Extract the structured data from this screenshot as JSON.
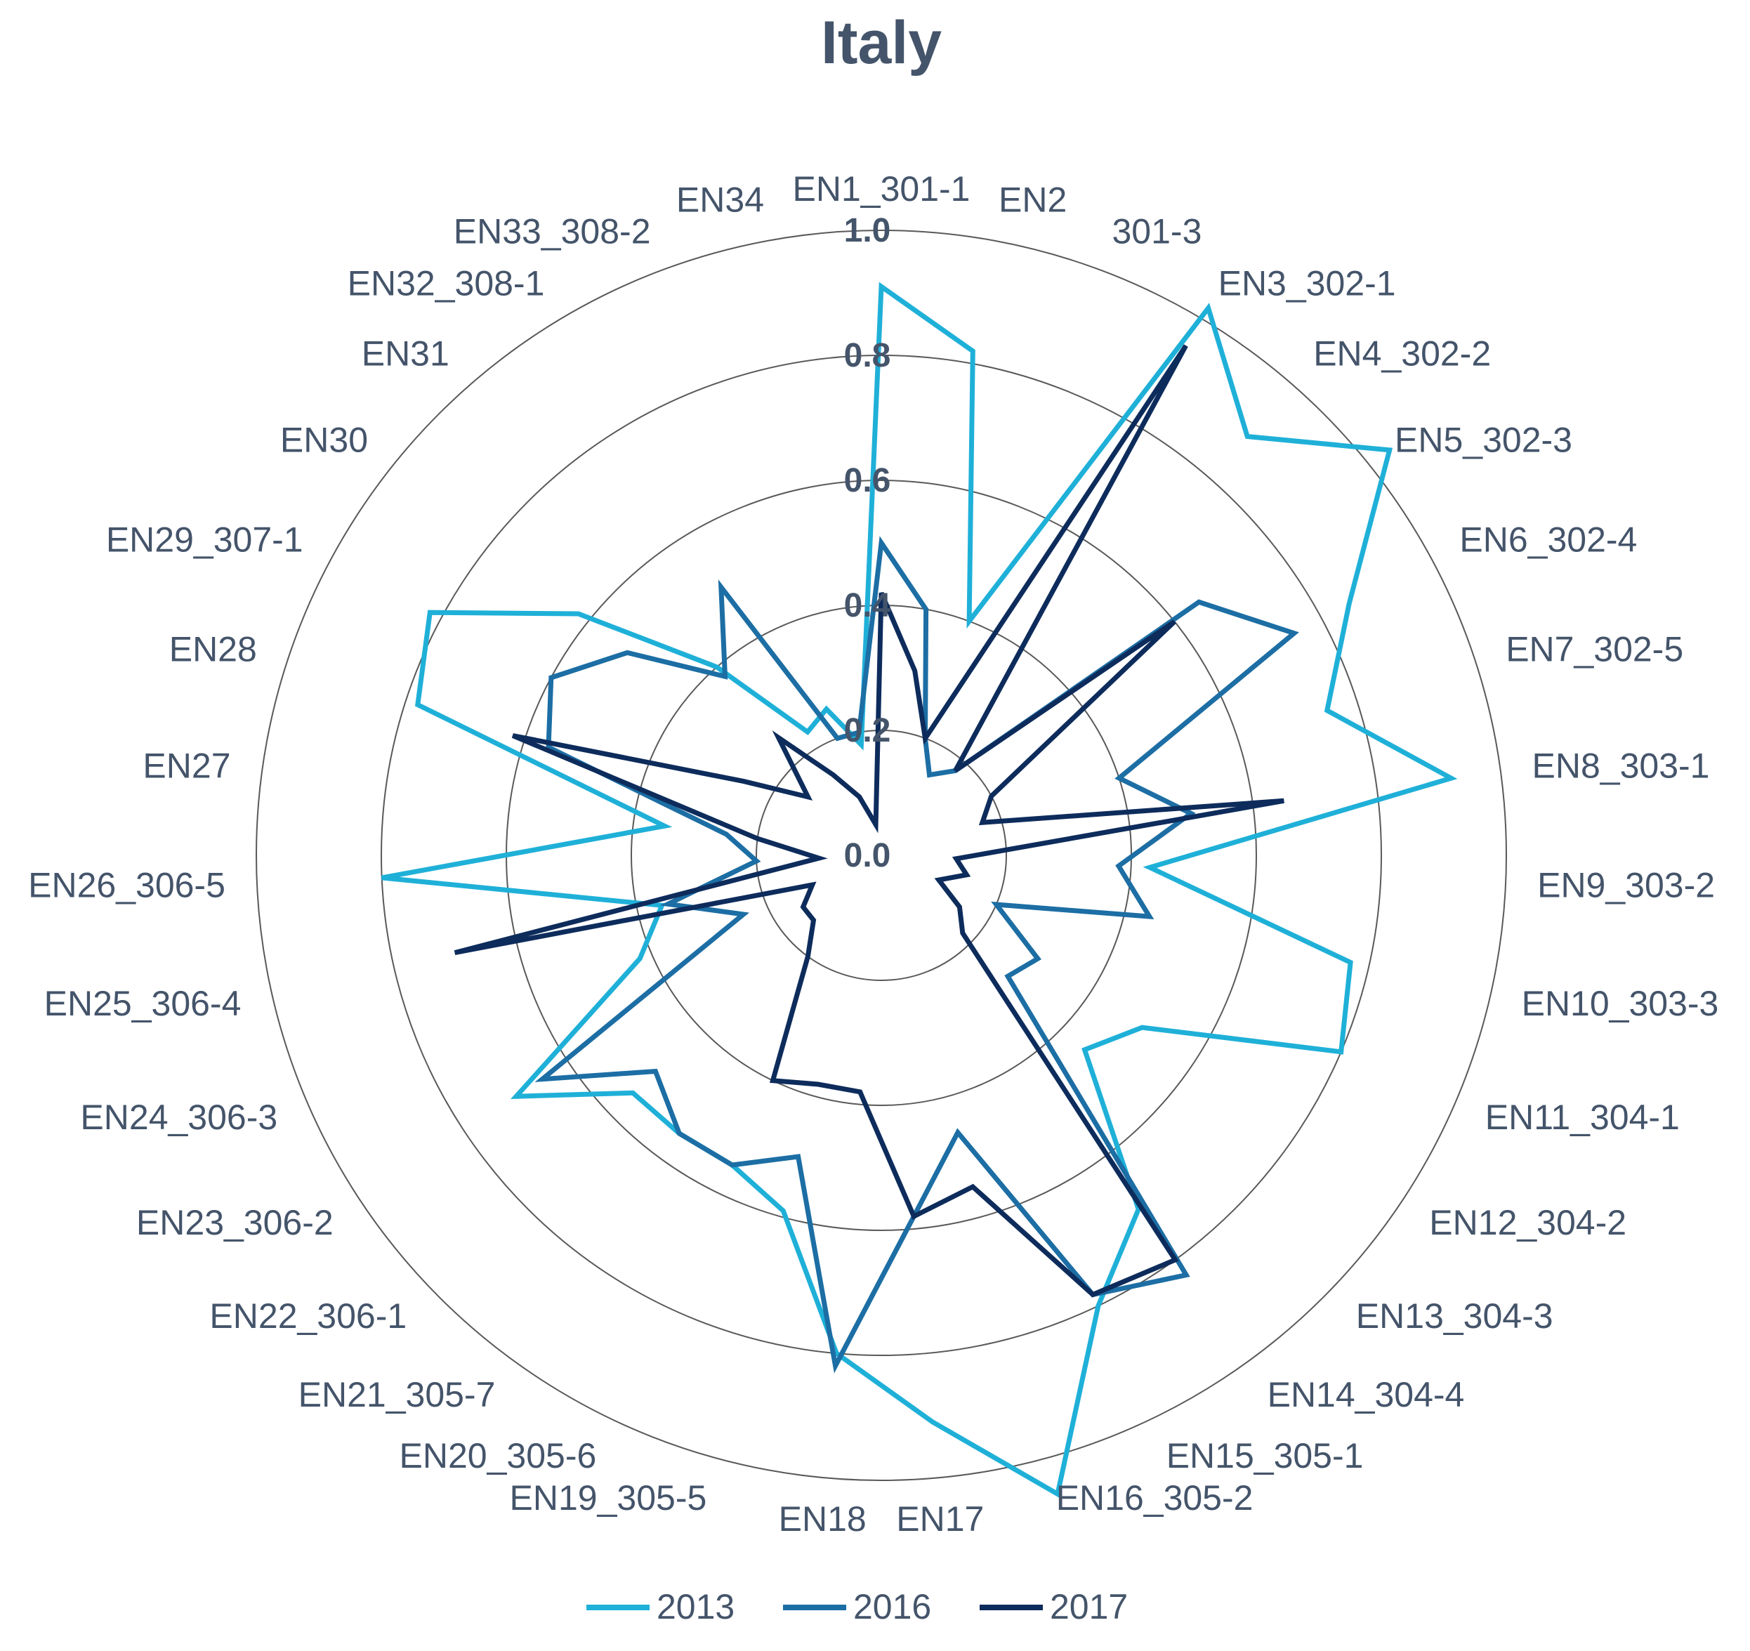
{
  "chart_data": {
    "type": "radar",
    "title": "Italy",
    "categories": [
      "EN1_301-1",
      "EN2",
      "301-3",
      "EN3_302-1",
      "EN4_302-2",
      "EN5_302-3",
      "EN6_302-4",
      "EN7_302-5",
      "EN8_303-1",
      "EN9_303-2",
      "EN10_303-3",
      "EN11_304-1",
      "EN12_304-2",
      "EN13_304-3",
      "EN14_304-4",
      "EN15_305-1",
      "EN16_305-2",
      "EN17",
      "EN18",
      "EN19_305-5",
      "EN20_305-6",
      "EN21_305-7",
      "EN22_306-1",
      "EN23_306-2",
      "EN24_306-3",
      "EN25_306-4",
      "EN26_306-5",
      "EN27",
      "EN28",
      "EN29_307-1",
      "EN30",
      "EN31",
      "EN32_308-1",
      "EN33_308-2",
      "EN34"
    ],
    "ticks": [
      "0.0",
      "0.2",
      "0.4",
      "0.6",
      "0.8",
      "1.0"
    ],
    "rlim": [
      0,
      1.0
    ],
    "grid": true,
    "legend_position": "bottom",
    "series": [
      {
        "name": "2013",
        "color": "#1fb0d8",
        "values": [
          0.91,
          0.82,
          0.4,
          1.02,
          0.89,
          1.04,
          0.85,
          0.75,
          0.92,
          0.43,
          0.77,
          0.8,
          0.5,
          0.45,
          0.7,
          0.8,
          1.06,
          0.91,
          0.8,
          0.59,
          0.55,
          0.55,
          0.55,
          0.7,
          0.42,
          0.36,
          0.8,
          0.35,
          0.78,
          0.82,
          0.62,
          0.4,
          0.23,
          0.25,
          0.18
        ]
      },
      {
        "name": "2016",
        "color": "#1c6ea4",
        "values": [
          0.5,
          0.4,
          0.2,
          0.15,
          0.18,
          0.65,
          0.75,
          0.4,
          0.5,
          0.38,
          0.44,
          0.2,
          0.3,
          0.28,
          0.83,
          0.78,
          0.46,
          0.58,
          0.82,
          0.5,
          0.55,
          0.55,
          0.5,
          0.65,
          0.24,
          0.35,
          0.2,
          0.25,
          0.56,
          0.6,
          0.52,
          0.38,
          0.5,
          0.2,
          0.2
        ]
      },
      {
        "name": "2017",
        "color": "#0d2c5c",
        "values": [
          0.42,
          0.3,
          0.2,
          0.95,
          0.18,
          0.6,
          0.2,
          0.17,
          0.65,
          0.12,
          0.14,
          0.1,
          0.15,
          0.18,
          0.8,
          0.78,
          0.55,
          0.58,
          0.38,
          0.38,
          0.4,
          0.2,
          0.15,
          0.15,
          0.12,
          0.7,
          0.1,
          0.2,
          0.62,
          0.25,
          0.15,
          0.25,
          0.15,
          0.1,
          0.05
        ]
      }
    ]
  }
}
